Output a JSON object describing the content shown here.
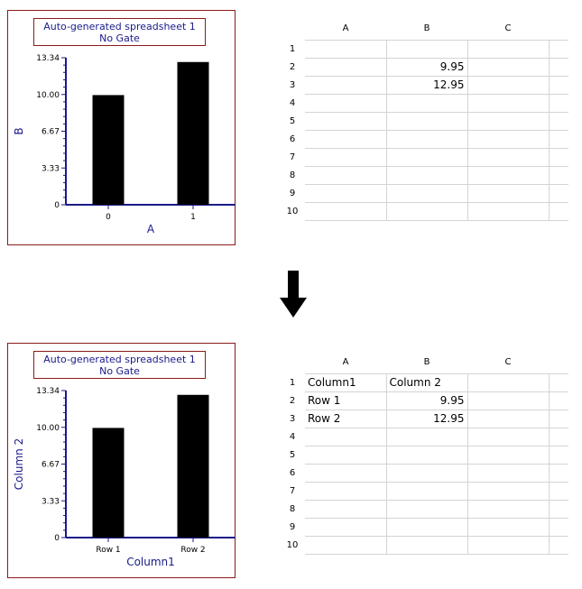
{
  "colors": {
    "frame": "#8b1a1a",
    "axis": "#1a1a8a",
    "bar": "#000000",
    "grid": "#d4d4d4"
  },
  "top": {
    "chart": {
      "title_line1": "Auto-generated spreadsheet 1",
      "title_line2": "No Gate",
      "xlabel": "A",
      "ylabel": "B"
    },
    "chart_data": {
      "type": "bar",
      "title": "Auto-generated spreadsheet 1\nNo Gate",
      "categories": [
        "0",
        "1"
      ],
      "values": [
        9.95,
        12.95
      ],
      "xlabel": "A",
      "ylabel": "B",
      "ylim": [
        0,
        13.34
      ],
      "yticks": [
        "0",
        "3.33",
        "6.67",
        "10.00",
        "13.34"
      ],
      "grid": false
    },
    "sheet": {
      "columns": [
        "A",
        "B",
        "C"
      ],
      "rows": [
        {
          "num": "1",
          "a": "",
          "b": "",
          "c": ""
        },
        {
          "num": "2",
          "a": "",
          "b": "9.95",
          "c": ""
        },
        {
          "num": "3",
          "a": "",
          "b": "12.95",
          "c": ""
        },
        {
          "num": "4",
          "a": "",
          "b": "",
          "c": ""
        },
        {
          "num": "5",
          "a": "",
          "b": "",
          "c": ""
        },
        {
          "num": "6",
          "a": "",
          "b": "",
          "c": ""
        },
        {
          "num": "7",
          "a": "",
          "b": "",
          "c": ""
        },
        {
          "num": "8",
          "a": "",
          "b": "",
          "c": ""
        },
        {
          "num": "9",
          "a": "",
          "b": "",
          "c": ""
        },
        {
          "num": "10",
          "a": "",
          "b": "",
          "c": ""
        }
      ]
    }
  },
  "bottom": {
    "chart": {
      "title_line1": "Auto-generated spreadsheet 1",
      "title_line2": "No Gate",
      "xlabel": "Column1",
      "ylabel": "Column 2"
    },
    "chart_data": {
      "type": "bar",
      "title": "Auto-generated spreadsheet 1\nNo Gate",
      "categories": [
        "Row 1",
        "Row 2"
      ],
      "values": [
        9.95,
        12.95
      ],
      "xlabel": "Column1",
      "ylabel": "Column 2",
      "ylim": [
        0,
        13.34
      ],
      "yticks": [
        "0",
        "3.33",
        "6.67",
        "10.00",
        "13.34"
      ],
      "grid": false
    },
    "sheet": {
      "columns": [
        "A",
        "B",
        "C"
      ],
      "rows": [
        {
          "num": "1",
          "a": "Column1",
          "b": "Column 2",
          "c": ""
        },
        {
          "num": "2",
          "a": "Row 1",
          "b": "9.95",
          "c": ""
        },
        {
          "num": "3",
          "a": "Row 2",
          "b": "12.95",
          "c": ""
        },
        {
          "num": "4",
          "a": "",
          "b": "",
          "c": ""
        },
        {
          "num": "5",
          "a": "",
          "b": "",
          "c": ""
        },
        {
          "num": "6",
          "a": "",
          "b": "",
          "c": ""
        },
        {
          "num": "7",
          "a": "",
          "b": "",
          "c": ""
        },
        {
          "num": "8",
          "a": "",
          "b": "",
          "c": ""
        },
        {
          "num": "9",
          "a": "",
          "b": "",
          "c": ""
        },
        {
          "num": "10",
          "a": "",
          "b": "",
          "c": ""
        }
      ]
    }
  },
  "arrow_icon": "down-arrow-icon"
}
